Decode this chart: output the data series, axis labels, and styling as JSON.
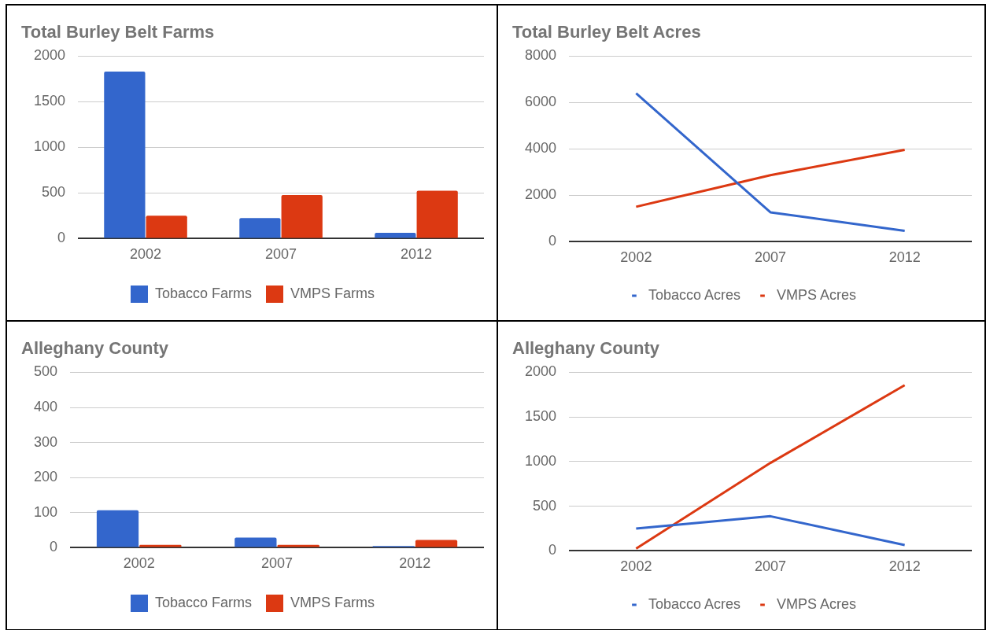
{
  "chart_data": [
    {
      "type": "bar",
      "title": "Total Burley Belt Farms",
      "categories": [
        "2002",
        "2007",
        "2012"
      ],
      "series": [
        {
          "name": "Tobacco Farms",
          "color": "#3366cc",
          "values": [
            1830,
            226,
            64
          ]
        },
        {
          "name": "VMPS Farms",
          "color": "#dc3912",
          "values": [
            252,
            477,
            526
          ]
        }
      ],
      "ylim": [
        0,
        2000
      ],
      "yticks": [
        0,
        500,
        1000,
        1500,
        2000
      ],
      "grid": "y",
      "legend": "bottom"
    },
    {
      "type": "line",
      "title": "Total Burley Belt Acres",
      "categories": [
        "2002",
        "2007",
        "2012"
      ],
      "series": [
        {
          "name": "Tobacco Acres",
          "color": "#3366cc",
          "values": [
            6400,
            1270,
            470
          ]
        },
        {
          "name": "VMPS Acres",
          "color": "#dc3912",
          "values": [
            1510,
            2870,
            3960
          ]
        }
      ],
      "ylim": [
        0,
        8000
      ],
      "yticks": [
        0,
        2000,
        4000,
        6000,
        8000
      ],
      "grid": "y",
      "legend": "bottom",
      "marker": "none",
      "line_style": "solid"
    },
    {
      "type": "bar",
      "title": "Alleghany County",
      "categories": [
        "2002",
        "2007",
        "2012"
      ],
      "series": [
        {
          "name": "Tobacco Farms",
          "color": "#3366cc",
          "values": [
            107,
            29,
            5
          ]
        },
        {
          "name": "VMPS Farms",
          "color": "#dc3912",
          "values": [
            8,
            8,
            22
          ]
        }
      ],
      "ylim": [
        0,
        500
      ],
      "yticks": [
        0,
        100,
        200,
        300,
        400,
        500
      ],
      "grid": "y",
      "legend": "bottom"
    },
    {
      "type": "line",
      "title": "Alleghany County",
      "categories": [
        "2002",
        "2007",
        "2012"
      ],
      "series": [
        {
          "name": "Tobacco Acres",
          "color": "#3366cc",
          "values": [
            251,
            388,
            65
          ]
        },
        {
          "name": "VMPS Acres",
          "color": "#dc3912",
          "values": [
            25,
            985,
            1856
          ]
        }
      ],
      "ylim": [
        0,
        2000
      ],
      "yticks": [
        0,
        500,
        1000,
        1500,
        2000
      ],
      "grid": "y",
      "legend": "bottom",
      "marker": "none",
      "line_style": "solid"
    }
  ]
}
